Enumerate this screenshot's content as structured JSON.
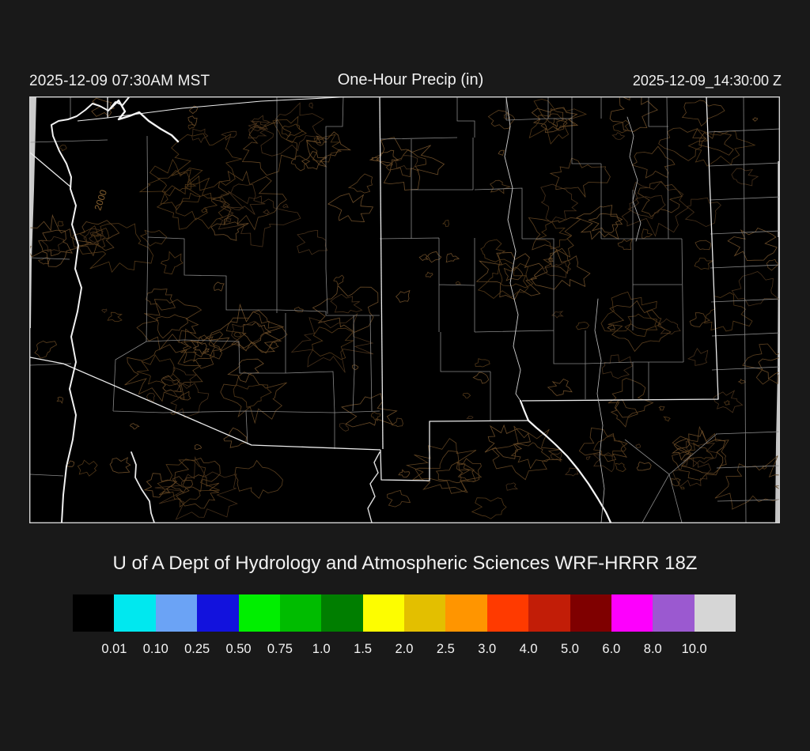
{
  "header": {
    "left_timestamp": "2025-12-09 07:30AM MST",
    "title": "One-Hour Precip (in)",
    "right_timestamp": "2025-12-09_14:30:00 Z"
  },
  "caption": "U of A Dept of Hydrology and Atmospheric Sciences WRF-HRRR 18Z",
  "map": {
    "contour_label": "2000",
    "background": "#000000",
    "state_border_color": "#ebebeb",
    "county_border_color": "#8f8f8f",
    "contour_color": "#5d4120",
    "river_color": "#f2f2f2",
    "domain_edge_fill": "#cccccc"
  },
  "colorbar": {
    "colors": [
      "#000000",
      "#00e8ef",
      "#6ba3f5",
      "#1212dd",
      "#00ef00",
      "#00bc00",
      "#007e00",
      "#fdfd00",
      "#e3bf00",
      "#ff9500",
      "#ff3a00",
      "#c21d07",
      "#7f0000",
      "#fd00fd",
      "#9b59d0",
      "#d6d6d6"
    ],
    "labels": [
      "0.01",
      "0.10",
      "0.25",
      "0.50",
      "0.75",
      "1.0",
      "1.5",
      "2.0",
      "2.5",
      "3.0",
      "4.0",
      "5.0",
      "6.0",
      "8.0",
      "10.0"
    ],
    "units": "in"
  }
}
